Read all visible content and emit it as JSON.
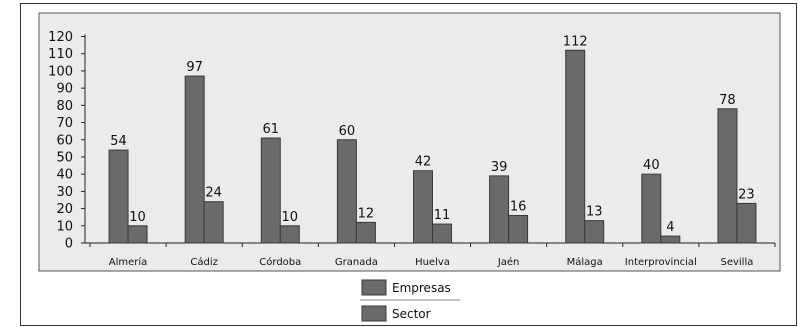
{
  "chart_data": {
    "type": "bar",
    "categories": [
      "Almería",
      "Cádiz",
      "Córdoba",
      "Granada",
      "Huelva",
      "Jaén",
      "Málaga",
      "Interprovincial",
      "Sevilla"
    ],
    "series": [
      {
        "name": "Empresas",
        "values": [
          54,
          97,
          61,
          60,
          42,
          39,
          112,
          40,
          78
        ]
      },
      {
        "name": "Sector",
        "values": [
          10,
          24,
          10,
          12,
          11,
          16,
          13,
          4,
          23
        ]
      }
    ],
    "ylim": [
      0,
      120
    ],
    "yticks": [
      0,
      10,
      20,
      30,
      40,
      50,
      60,
      70,
      80,
      90,
      100,
      110,
      120
    ],
    "legend_position": "bottom",
    "grid": false,
    "colors": {
      "bar": "#6a6a6a",
      "bar_edge": "#3a3a3a",
      "plot_background": "#ebebeb"
    }
  }
}
